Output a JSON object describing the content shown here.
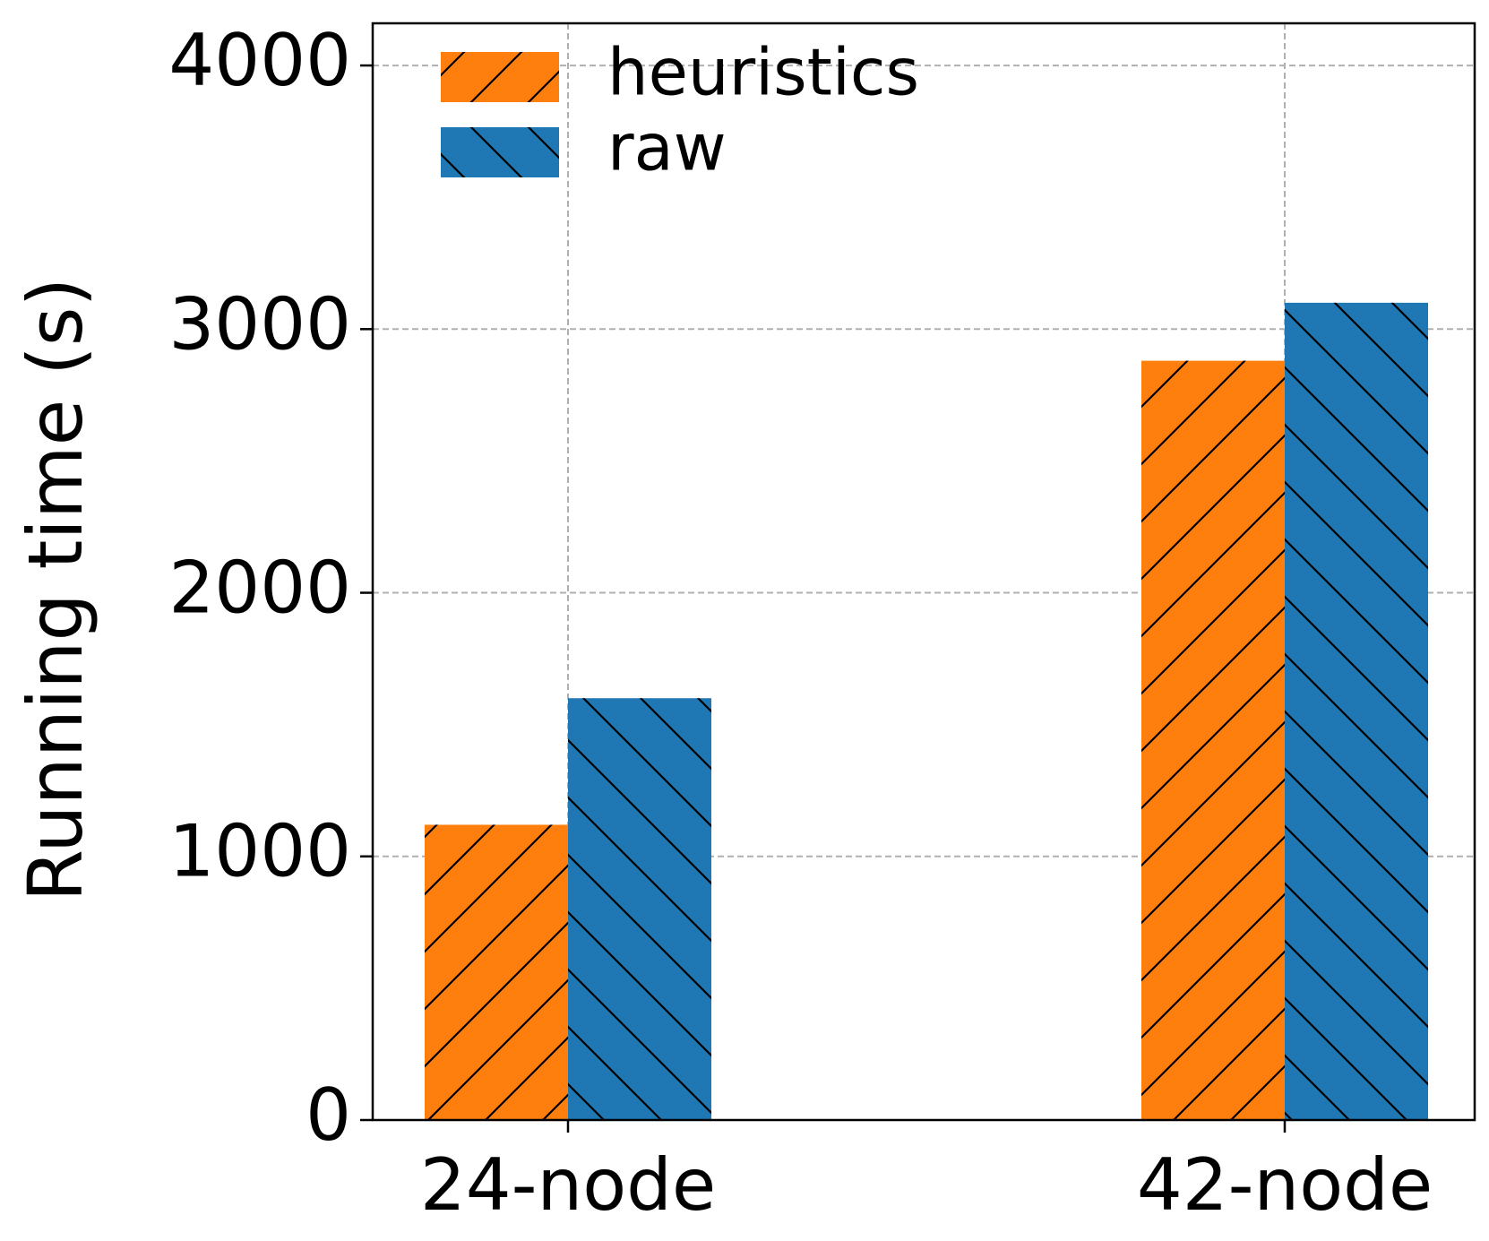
{
  "chart_data": {
    "type": "bar",
    "title": "",
    "xlabel": "",
    "ylabel": "Running time (s)",
    "categories": [
      "24-node",
      "42-node"
    ],
    "series": [
      {
        "name": "heuristics",
        "values": [
          1120,
          2880
        ],
        "color": "#ff7f0e",
        "hatch": "forward-diagonal"
      },
      {
        "name": "raw",
        "values": [
          1600,
          3100
        ],
        "color": "#1f77b4",
        "hatch": "back-diagonal"
      }
    ],
    "ylim": [
      0,
      4160
    ],
    "yticks": [
      0,
      1000,
      2000,
      3000,
      4000
    ],
    "ytick_labels": [
      "0",
      "1000",
      "2000",
      "3000",
      "4000"
    ],
    "grid": true,
    "legend_position": "top-left"
  }
}
